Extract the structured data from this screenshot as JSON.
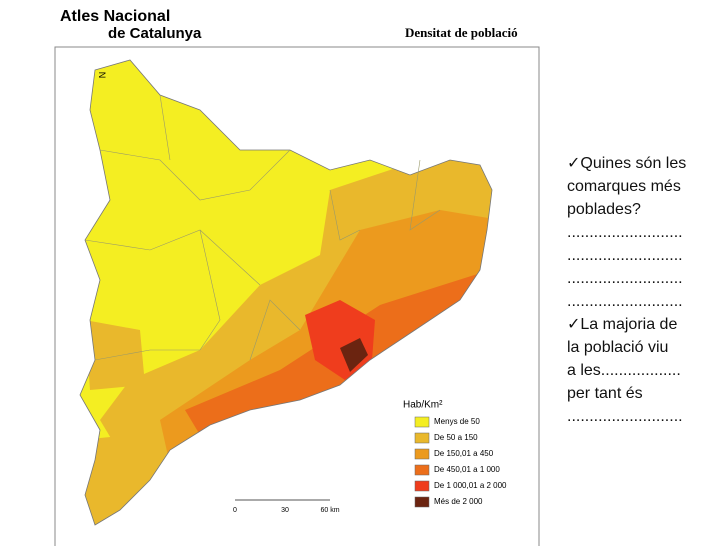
{
  "header": {
    "title_line1": "Atles Nacional",
    "title_line2": "de Catalunya",
    "map_title": "Densitat de població"
  },
  "map": {
    "north": "N",
    "legend": {
      "title": "Hab/Km²",
      "items": [
        {
          "label": "Menys de 50",
          "color": "#f4ee22"
        },
        {
          "label": "De 50 a 150",
          "color": "#e9b82c"
        },
        {
          "label": "De 150,01 a 450",
          "color": "#ec9a1e"
        },
        {
          "label": "De 450,01 a 1 000",
          "color": "#ec6e1a"
        },
        {
          "label": "De 1 000,01 a 2 000",
          "color": "#ef3d1d"
        },
        {
          "label": "Més de 2 000",
          "color": "#6b2410"
        }
      ]
    },
    "scale": [
      "0",
      "30",
      "60 km"
    ]
  },
  "notes": {
    "lines": [
      "✓Quines són les",
      "comarques més",
      "poblades?",
      "..........................",
      "..........................",
      "..........................",
      "..........................",
      "✓La majoria de",
      "la població viu",
      "a les..................",
      "per tant és",
      ".........................."
    ]
  }
}
